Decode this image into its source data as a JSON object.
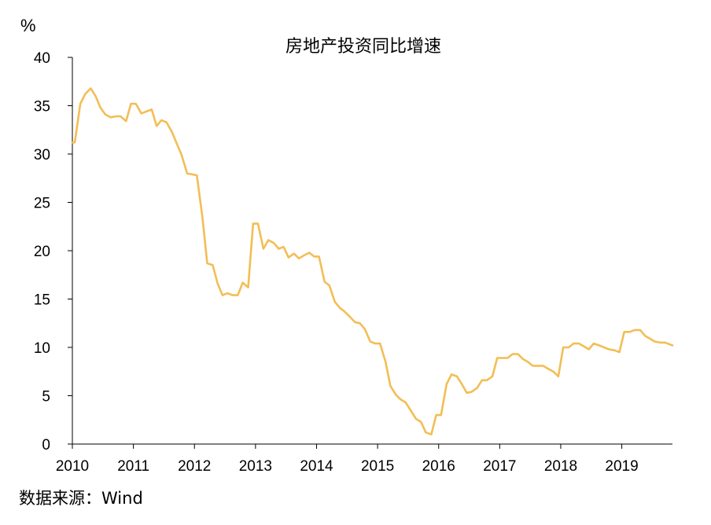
{
  "chart_data": {
    "type": "line",
    "title": "房地产投资同比增速",
    "unit_label": "%",
    "ylim": [
      0,
      40
    ],
    "yticks": [
      0,
      5,
      10,
      15,
      20,
      25,
      30,
      35,
      40
    ],
    "xlim": [
      2010,
      2019.83
    ],
    "xticks": [
      2010,
      2011,
      2012,
      2013,
      2014,
      2015,
      2016,
      2017,
      2018,
      2019
    ],
    "grid": false,
    "line_color": "#F2BE55",
    "series": [
      {
        "points": [
          [
            2010.0,
            31.2
          ],
          [
            2010.04,
            31.2
          ],
          [
            2010.13,
            35.2
          ],
          [
            2010.21,
            36.2
          ],
          [
            2010.3,
            36.8
          ],
          [
            2010.38,
            36.0
          ],
          [
            2010.46,
            34.8
          ],
          [
            2010.54,
            34.1
          ],
          [
            2010.63,
            33.8
          ],
          [
            2010.71,
            33.9
          ],
          [
            2010.79,
            33.9
          ],
          [
            2010.88,
            33.4
          ],
          [
            2010.96,
            35.2
          ],
          [
            2011.04,
            35.2
          ],
          [
            2011.13,
            34.2
          ],
          [
            2011.21,
            34.4
          ],
          [
            2011.3,
            34.6
          ],
          [
            2011.38,
            32.9
          ],
          [
            2011.46,
            33.5
          ],
          [
            2011.54,
            33.3
          ],
          [
            2011.63,
            32.3
          ],
          [
            2011.71,
            31.1
          ],
          [
            2011.79,
            29.9
          ],
          [
            2011.88,
            28.0
          ],
          [
            2011.96,
            27.9
          ],
          [
            2012.04,
            27.8
          ],
          [
            2012.13,
            23.5
          ],
          [
            2012.21,
            18.7
          ],
          [
            2012.3,
            18.5
          ],
          [
            2012.38,
            16.6
          ],
          [
            2012.46,
            15.4
          ],
          [
            2012.54,
            15.6
          ],
          [
            2012.63,
            15.4
          ],
          [
            2012.71,
            15.4
          ],
          [
            2012.79,
            16.7
          ],
          [
            2012.88,
            16.2
          ],
          [
            2012.96,
            22.8
          ],
          [
            2013.04,
            22.8
          ],
          [
            2013.13,
            20.2
          ],
          [
            2013.21,
            21.1
          ],
          [
            2013.3,
            20.8
          ],
          [
            2013.38,
            20.2
          ],
          [
            2013.46,
            20.4
          ],
          [
            2013.54,
            19.3
          ],
          [
            2013.63,
            19.7
          ],
          [
            2013.71,
            19.2
          ],
          [
            2013.79,
            19.5
          ],
          [
            2013.88,
            19.8
          ],
          [
            2013.96,
            19.4
          ],
          [
            2014.04,
            19.4
          ],
          [
            2014.13,
            16.8
          ],
          [
            2014.21,
            16.4
          ],
          [
            2014.3,
            14.7
          ],
          [
            2014.38,
            14.1
          ],
          [
            2014.46,
            13.7
          ],
          [
            2014.54,
            13.2
          ],
          [
            2014.63,
            12.6
          ],
          [
            2014.71,
            12.5
          ],
          [
            2014.79,
            11.9
          ],
          [
            2014.88,
            10.6
          ],
          [
            2014.96,
            10.4
          ],
          [
            2015.04,
            10.4
          ],
          [
            2015.13,
            8.5
          ],
          [
            2015.21,
            6.0
          ],
          [
            2015.3,
            5.1
          ],
          [
            2015.38,
            4.6
          ],
          [
            2015.46,
            4.3
          ],
          [
            2015.54,
            3.5
          ],
          [
            2015.63,
            2.6
          ],
          [
            2015.71,
            2.3
          ],
          [
            2015.79,
            1.2
          ],
          [
            2015.88,
            1.0
          ],
          [
            2015.96,
            3.0
          ],
          [
            2016.04,
            3.0
          ],
          [
            2016.13,
            6.2
          ],
          [
            2016.21,
            7.2
          ],
          [
            2016.3,
            7.0
          ],
          [
            2016.38,
            6.2
          ],
          [
            2016.46,
            5.3
          ],
          [
            2016.54,
            5.4
          ],
          [
            2016.63,
            5.8
          ],
          [
            2016.71,
            6.6
          ],
          [
            2016.79,
            6.6
          ],
          [
            2016.88,
            7.0
          ],
          [
            2016.96,
            8.9
          ],
          [
            2017.04,
            8.9
          ],
          [
            2017.13,
            8.9
          ],
          [
            2017.21,
            9.3
          ],
          [
            2017.3,
            9.3
          ],
          [
            2017.38,
            8.8
          ],
          [
            2017.46,
            8.5
          ],
          [
            2017.54,
            8.1
          ],
          [
            2017.63,
            8.1
          ],
          [
            2017.71,
            8.1
          ],
          [
            2017.79,
            7.8
          ],
          [
            2017.88,
            7.5
          ],
          [
            2017.96,
            7.0
          ],
          [
            2018.04,
            10.0
          ],
          [
            2018.13,
            10.0
          ],
          [
            2018.21,
            10.4
          ],
          [
            2018.3,
            10.4
          ],
          [
            2018.38,
            10.1
          ],
          [
            2018.46,
            9.8
          ],
          [
            2018.54,
            10.4
          ],
          [
            2018.63,
            10.2
          ],
          [
            2018.71,
            10.0
          ],
          [
            2018.79,
            9.8
          ],
          [
            2018.88,
            9.7
          ],
          [
            2018.96,
            9.5
          ],
          [
            2019.04,
            11.6
          ],
          [
            2019.13,
            11.6
          ],
          [
            2019.21,
            11.8
          ],
          [
            2019.3,
            11.8
          ],
          [
            2019.38,
            11.2
          ],
          [
            2019.46,
            10.9
          ],
          [
            2019.54,
            10.6
          ],
          [
            2019.63,
            10.5
          ],
          [
            2019.71,
            10.5
          ],
          [
            2019.79,
            10.3
          ],
          [
            2019.83,
            10.2
          ]
        ]
      }
    ]
  },
  "source_text": "数据来源：Wind"
}
